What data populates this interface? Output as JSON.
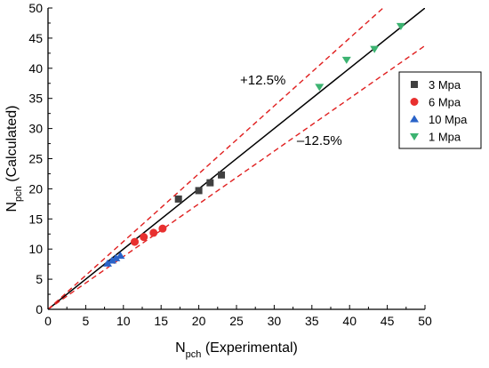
{
  "chart_data": {
    "type": "scatter",
    "xlabel": {
      "main": "N",
      "sub": "pch",
      "rest": " (Experimental)"
    },
    "ylabel": {
      "main": "N",
      "sub": "pch",
      "rest": " (Calculated)"
    },
    "xlim": [
      0,
      50
    ],
    "ylim": [
      0,
      50
    ],
    "xticks": [
      0,
      5,
      10,
      15,
      20,
      25,
      30,
      35,
      40,
      45,
      50
    ],
    "yticks": [
      0,
      5,
      10,
      15,
      20,
      25,
      30,
      35,
      40,
      45,
      50
    ],
    "grid": false,
    "legend_position": "right",
    "series": [
      {
        "name": "3 Mpa",
        "marker": "square",
        "color": "#404040",
        "points": [
          [
            17.3,
            18.3
          ],
          [
            20.0,
            19.7
          ],
          [
            21.5,
            21.0
          ],
          [
            23.0,
            22.3
          ]
        ]
      },
      {
        "name": "6 Mpa",
        "marker": "circle",
        "color": "#e8302f",
        "points": [
          [
            11.5,
            11.2
          ],
          [
            12.7,
            12.0
          ],
          [
            14.0,
            12.7
          ],
          [
            15.2,
            13.4
          ]
        ]
      },
      {
        "name": "10 Mpa",
        "marker": "triangle-up",
        "color": "#2a63c8",
        "points": [
          [
            7.9,
            7.6
          ],
          [
            8.5,
            8.1
          ],
          [
            9.0,
            8.5
          ],
          [
            9.6,
            8.9
          ]
        ]
      },
      {
        "name": "1 Mpa",
        "marker": "triangle-down",
        "color": "#3cb371",
        "points": [
          [
            36.0,
            36.9
          ],
          [
            39.6,
            41.4
          ],
          [
            43.3,
            43.2
          ],
          [
            46.8,
            47.0
          ]
        ]
      }
    ],
    "reference_lines": [
      {
        "kind": "identity",
        "slope": 1.0,
        "style": "solid",
        "color": "#000000"
      },
      {
        "kind": "upper-bound",
        "slope": 1.125,
        "style": "dashed",
        "color": "#e02020"
      },
      {
        "kind": "lower-bound",
        "slope": 0.875,
        "style": "dashed",
        "color": "#e02020"
      }
    ],
    "annotations": [
      {
        "text": "+12.5%",
        "x": 28.5,
        "y": 37.3
      },
      {
        "text": "–12.5%",
        "x": 36.0,
        "y": 27.3
      }
    ]
  }
}
